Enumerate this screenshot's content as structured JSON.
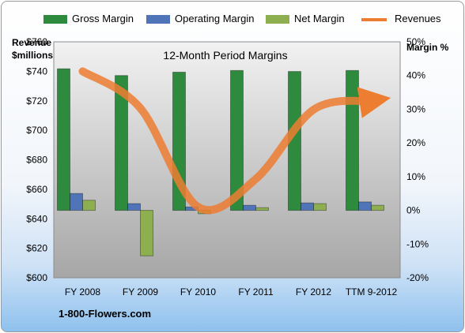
{
  "colors": {
    "gross": "#2e8b3e",
    "operating": "#4f74b8",
    "net": "#8eaf4f",
    "revenue": "#ed7d31",
    "plot_top": "#f2f2f2",
    "plot_bottom": "#a6a6a6"
  },
  "legend": {
    "gross": "Gross Margin",
    "operating": "Operating Margin",
    "net": "Net Margin",
    "revenue": "Revenues"
  },
  "left_axis_title": [
    "Revenue",
    "$millions"
  ],
  "right_axis_title": "Margin %",
  "company_label": "1-800-Flowers.com",
  "chart_data": {
    "type": "bar",
    "title": "12-Month Period Margins",
    "categories": [
      "FY 2008",
      "FY 2009",
      "FY 2010",
      "FY 2011",
      "FY 2012",
      "TTM 9-2012"
    ],
    "left_axis": {
      "ylim": [
        600,
        760
      ],
      "ticks": [
        "$600",
        "$620",
        "$640",
        "$660",
        "$680",
        "$700",
        "$720",
        "$740",
        "$760"
      ]
    },
    "right_axis": {
      "ylim": [
        -20,
        50
      ],
      "ticks": [
        "-20%",
        "-10%",
        "0%",
        "10%",
        "20%",
        "30%",
        "40%",
        "50%"
      ]
    },
    "series": [
      {
        "name": "Gross Margin",
        "axis": "right",
        "kind": "bar",
        "values": [
          42,
          40,
          41,
          41.5,
          41.2,
          41.5
        ]
      },
      {
        "name": "Operating Margin",
        "axis": "right",
        "kind": "bar",
        "values": [
          5.0,
          2.0,
          1.0,
          1.5,
          2.2,
          2.5
        ]
      },
      {
        "name": "Net Margin",
        "axis": "right",
        "kind": "bar",
        "values": [
          3.0,
          -13.5,
          -1.0,
          0.8,
          2.0,
          1.5
        ]
      },
      {
        "name": "Revenues",
        "axis": "left",
        "kind": "line",
        "values": [
          740,
          715,
          648,
          667,
          714,
          720
        ]
      }
    ],
    "grid": false,
    "legend_position": "top"
  }
}
